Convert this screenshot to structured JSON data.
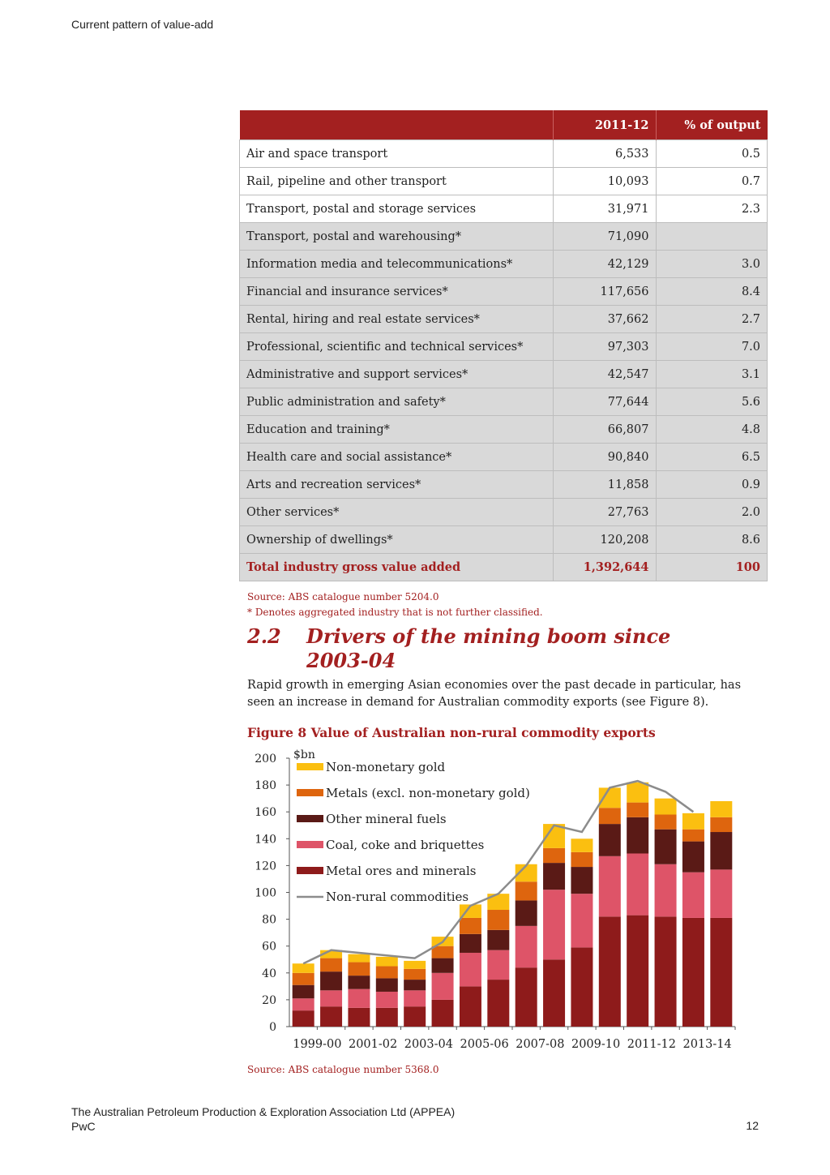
{
  "header": {
    "running_title": "Current pattern of value-add"
  },
  "table": {
    "columns": [
      "",
      "2011-12",
      "% of output"
    ],
    "rows": [
      {
        "industry": "Air and space transport",
        "value": "6,533",
        "pct": "0.5",
        "style": "plain"
      },
      {
        "industry": "Rail, pipeline and other transport",
        "value": "10,093",
        "pct": "0.7",
        "style": "plain"
      },
      {
        "industry": "Transport, postal and storage services",
        "value": "31,971",
        "pct": "2.3",
        "style": "plain"
      },
      {
        "industry": "Transport, postal and warehousing*",
        "value": "71,090",
        "pct": "",
        "style": "grey"
      },
      {
        "industry": "Information media and telecommunications*",
        "value": "42,129",
        "pct": "3.0",
        "style": "grey"
      },
      {
        "industry": "Financial and insurance services*",
        "value": "117,656",
        "pct": "8.4",
        "style": "grey"
      },
      {
        "industry": "Rental, hiring and real estate services*",
        "value": "37,662",
        "pct": "2.7",
        "style": "grey"
      },
      {
        "industry": "Professional, scientific and technical services*",
        "value": "97,303",
        "pct": "7.0",
        "style": "grey"
      },
      {
        "industry": "Administrative and support services*",
        "value": "42,547",
        "pct": "3.1",
        "style": "grey"
      },
      {
        "industry": "Public administration and safety*",
        "value": "77,644",
        "pct": "5.6",
        "style": "grey"
      },
      {
        "industry": "Education and training*",
        "value": "66,807",
        "pct": "4.8",
        "style": "grey"
      },
      {
        "industry": "Health care and social assistance*",
        "value": "90,840",
        "pct": "6.5",
        "style": "grey"
      },
      {
        "industry": "Arts and recreation services*",
        "value": "11,858",
        "pct": "0.9",
        "style": "grey"
      },
      {
        "industry": "Other services*",
        "value": "27,763",
        "pct": "2.0",
        "style": "grey"
      },
      {
        "industry": "Ownership of dwellings*",
        "value": "120,208",
        "pct": "8.6",
        "style": "grey"
      },
      {
        "industry": "Total industry gross value added",
        "value": "1,392,644",
        "pct": "100",
        "style": "total"
      }
    ],
    "source": "Source: ABS catalogue number 5204.0",
    "footnote": "* Denotes aggregated industry that is not further classified."
  },
  "section": {
    "number": "2.2",
    "title": "Drivers of the mining boom since 2003-04",
    "paragraph": "Rapid growth in emerging Asian economies over the past decade in particular, has seen an increase in demand for Australian commodity exports (see Figure 8)."
  },
  "figure": {
    "title": "Figure 8 Value of Australian non-rural commodity exports",
    "source": "Source:  ABS catalogue number 5368.0"
  },
  "chart_data": {
    "type": "bar",
    "stacked": true,
    "ylabel": "$bn",
    "ylim": [
      0,
      200
    ],
    "yticks": [
      0,
      20,
      40,
      60,
      80,
      100,
      120,
      140,
      160,
      180,
      200
    ],
    "categories": [
      "1999-00",
      "2000-01",
      "2001-02",
      "2002-03",
      "2003-04",
      "2004-05",
      "2005-06",
      "2006-07",
      "2007-08",
      "2008-09",
      "2009-10",
      "2010-11",
      "2011-12",
      "2012-13",
      "2013-14",
      "2014-15"
    ],
    "xtick_labels": [
      "1999-00",
      "",
      "2001-02",
      "",
      "2003-04",
      "",
      "2005-06",
      "",
      "2007-08",
      "",
      "2009-10",
      "",
      "2011-12",
      "",
      "2013-14",
      ""
    ],
    "series": [
      {
        "name": "Metal ores and minerals",
        "color": "#8e1b1b",
        "values": [
          12,
          15,
          14,
          14,
          15,
          20,
          30,
          35,
          44,
          50,
          59,
          82,
          83,
          82,
          81,
          81
        ]
      },
      {
        "name": "Coal, coke and briquettes",
        "color": "#de5468",
        "values": [
          9,
          12,
          14,
          12,
          12,
          20,
          25,
          22,
          31,
          52,
          40,
          45,
          46,
          39,
          34,
          36
        ]
      },
      {
        "name": "Other mineral fuels",
        "color": "#5a1a16",
        "values": [
          10,
          14,
          10,
          10,
          8,
          11,
          14,
          15,
          19,
          20,
          20,
          24,
          27,
          26,
          23,
          28
        ]
      },
      {
        "name": "Metals (excl. non-monetary gold)",
        "color": "#de650e",
        "values": [
          9,
          10,
          10,
          9,
          8,
          9,
          12,
          15,
          14,
          11,
          11,
          12,
          11,
          11,
          9,
          11
        ]
      },
      {
        "name": "Non-monetary gold",
        "color": "#fbbf10",
        "values": [
          7,
          6,
          6,
          7,
          6,
          7,
          10,
          12,
          13,
          18,
          10,
          15,
          15,
          12,
          12,
          12
        ]
      }
    ],
    "line": {
      "name": "Non-rural commodities",
      "color": "#8c8c8c",
      "values": [
        47,
        57,
        55,
        53,
        51,
        63,
        90,
        99,
        120,
        150,
        145,
        178,
        183,
        175,
        160,
        null
      ]
    },
    "legend_position": "top-left"
  },
  "footer": {
    "line1": "The Australian Petroleum Production & Exploration Association Ltd (APPEA)",
    "line2": "PwC",
    "page_number": "12"
  }
}
